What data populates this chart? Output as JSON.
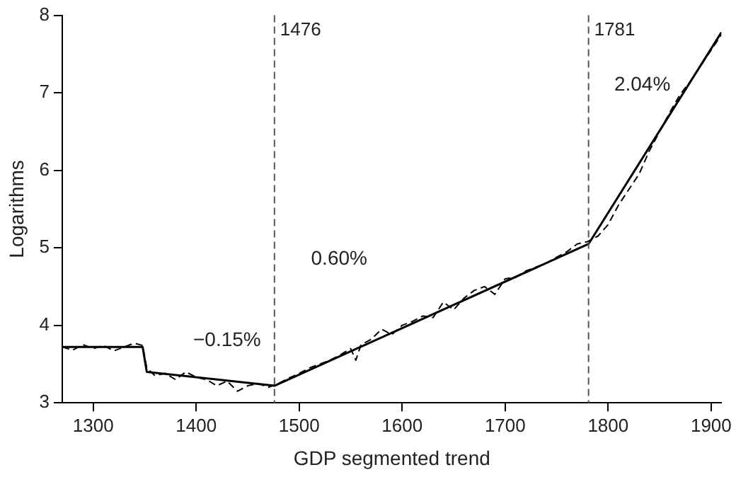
{
  "chart_data": {
    "type": "line",
    "xlabel": "GDP segmented trend",
    "ylabel": "Logarithms",
    "xlim": [
      1270,
      1910
    ],
    "xticks": [
      1300,
      1400,
      1500,
      1600,
      1700,
      1800,
      1900
    ],
    "ylim": [
      3,
      8
    ],
    "yticks": [
      3,
      4,
      5,
      6,
      7,
      8
    ],
    "grid": false,
    "legend": false,
    "marker": "none",
    "series": [
      {
        "color": "#000000",
        "line_style": "dashed",
        "x": [
          1270,
          1280,
          1290,
          1300,
          1310,
          1320,
          1330,
          1340,
          1348,
          1352,
          1360,
          1370,
          1380,
          1390,
          1400,
          1410,
          1420,
          1430,
          1440,
          1450,
          1460,
          1470,
          1480,
          1490,
          1500,
          1510,
          1520,
          1530,
          1540,
          1550,
          1555,
          1560,
          1570,
          1580,
          1590,
          1600,
          1610,
          1620,
          1630,
          1640,
          1650,
          1660,
          1670,
          1680,
          1690,
          1700,
          1710,
          1720,
          1730,
          1740,
          1750,
          1760,
          1770,
          1780,
          1790,
          1800,
          1810,
          1820,
          1830,
          1840,
          1850,
          1860,
          1870,
          1880,
          1890,
          1900,
          1910
        ],
        "values": [
          3.72,
          3.68,
          3.75,
          3.7,
          3.74,
          3.67,
          3.72,
          3.77,
          3.74,
          3.45,
          3.35,
          3.38,
          3.3,
          3.4,
          3.33,
          3.3,
          3.22,
          3.28,
          3.15,
          3.22,
          3.25,
          3.2,
          3.25,
          3.32,
          3.38,
          3.45,
          3.5,
          3.55,
          3.62,
          3.7,
          3.55,
          3.75,
          3.82,
          3.95,
          3.88,
          4.0,
          4.05,
          4.12,
          4.1,
          4.3,
          4.2,
          4.35,
          4.45,
          4.5,
          4.4,
          4.6,
          4.62,
          4.7,
          4.75,
          4.8,
          4.88,
          4.95,
          5.05,
          5.08,
          5.15,
          5.3,
          5.55,
          5.75,
          5.95,
          6.25,
          6.5,
          6.75,
          6.98,
          7.15,
          7.35,
          7.55,
          7.75
        ]
      },
      {
        "color": "#000000",
        "line_style": "solid",
        "x": [
          1270,
          1348,
          1352,
          1476,
          1781,
          1910
        ],
        "values": [
          3.72,
          3.72,
          3.4,
          3.22,
          5.05,
          7.78
        ]
      }
    ],
    "ref_lines": [
      {
        "axis": "x",
        "value": 1476,
        "label": "1476",
        "color": "#555555",
        "line_style": "dashed"
      },
      {
        "axis": "x",
        "value": 1781,
        "label": "1781",
        "color": "#555555",
        "line_style": "dashed"
      }
    ],
    "annotations": [
      "−0.15%",
      "0.60%",
      "2.04%"
    ]
  }
}
